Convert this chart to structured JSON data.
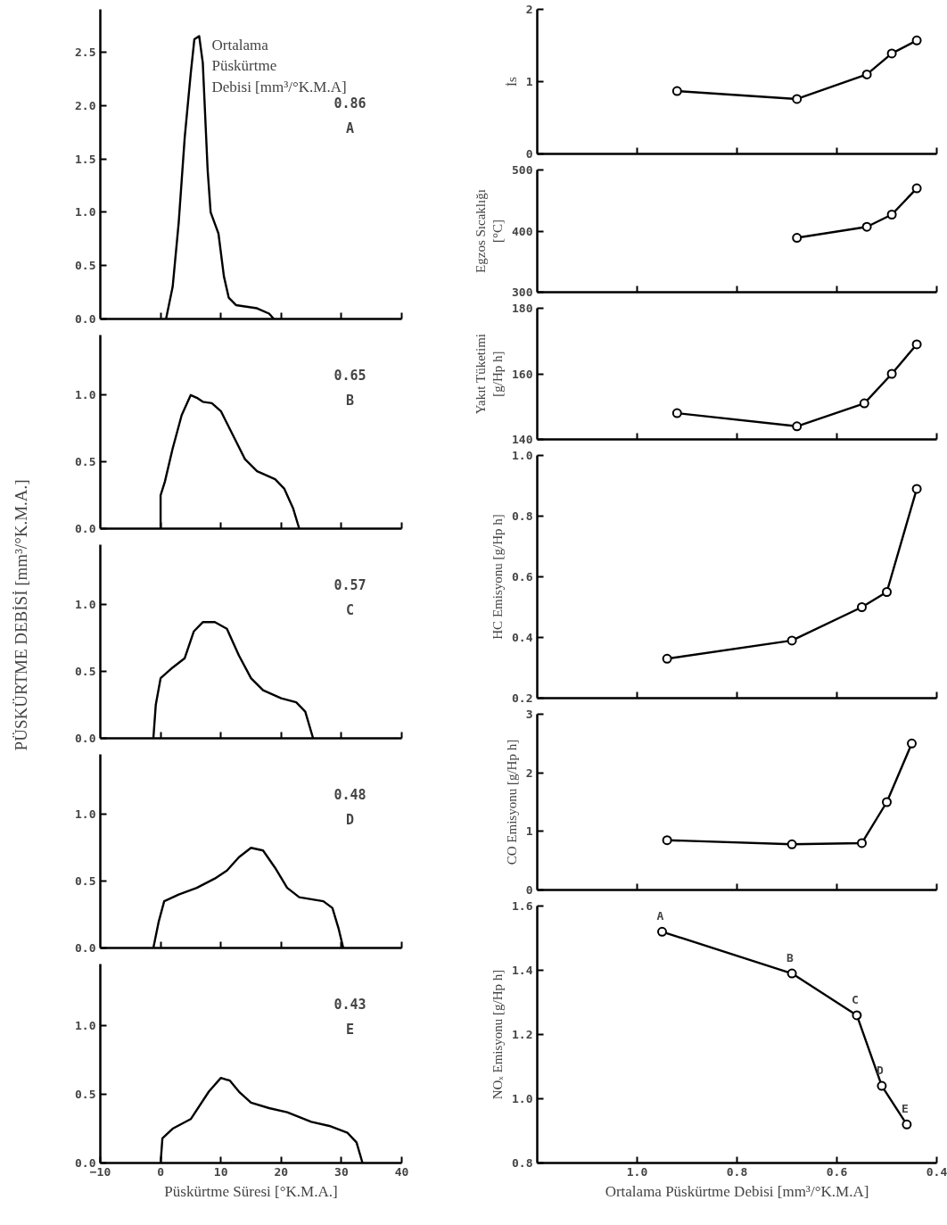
{
  "chart_data": [
    {
      "type": "line",
      "legend_title": "Ortalama\nPüskürtme\nDebisi [mm³/°K.M.A]",
      "annotations": [
        "0.86",
        "A"
      ],
      "xlim": [
        -10,
        40
      ],
      "xticks": [
        {
          "value": 0,
          "label": null
        },
        {
          "value": 10,
          "label": null
        },
        {
          "value": 20,
          "label": null
        },
        {
          "value": 30,
          "label": null
        },
        {
          "value": 40,
          "label": null
        }
      ],
      "ylim": [
        0,
        2.9
      ],
      "yticks": [
        {
          "value": 0,
          "label": "0.0"
        },
        0.5,
        {
          "value": 1,
          "label": "1.0"
        },
        1.5,
        {
          "value": 2,
          "label": "2.0"
        },
        2.5
      ],
      "tick_labels": "y",
      "x": [
        0.9,
        2,
        3,
        4,
        5,
        5.6,
        6.4,
        7,
        7.8,
        8.3,
        9.6,
        10.5,
        11.3,
        12.5,
        16,
        18,
        18.8
      ],
      "series": [
        {
          "color": "#000000",
          "values": [
            0,
            0.3,
            0.9,
            1.7,
            2.3,
            2.62,
            2.65,
            2.4,
            1.4,
            1.0,
            0.8,
            0.4,
            0.2,
            0.13,
            0.1,
            0.05,
            0
          ]
        }
      ]
    },
    {
      "type": "line",
      "annotations": [
        "0.65",
        "B"
      ],
      "xlim": [
        -10,
        40
      ],
      "xticks": [
        {
          "value": 0,
          "label": null
        },
        {
          "value": 10,
          "label": null
        },
        {
          "value": 20,
          "label": null
        },
        {
          "value": 30,
          "label": null
        },
        {
          "value": 40,
          "label": null
        }
      ],
      "ylim": [
        0,
        1.45
      ],
      "yticks": [
        {
          "value": 0,
          "label": "0.0"
        },
        0.5,
        {
          "value": 1,
          "label": "1.0"
        }
      ],
      "tick_labels": "y",
      "x": [
        0,
        0,
        0.7,
        2,
        3.5,
        5,
        6,
        7,
        8.5,
        10,
        12,
        14,
        16,
        19,
        20.5,
        22,
        23
      ],
      "series": [
        {
          "color": "#000000",
          "values": [
            0,
            0.25,
            0.35,
            0.6,
            0.85,
            1.0,
            0.98,
            0.95,
            0.94,
            0.88,
            0.7,
            0.52,
            0.43,
            0.37,
            0.3,
            0.15,
            0
          ]
        }
      ]
    },
    {
      "type": "line",
      "ylabel": "PÜSKÜRTME DEBİSİ  [mm³/°K.M.A.]",
      "annotations": [
        "0.57",
        "C"
      ],
      "xlim": [
        -10,
        40
      ],
      "xticks": [
        {
          "value": 0,
          "label": null
        },
        {
          "value": 10,
          "label": null
        },
        {
          "value": 20,
          "label": null
        },
        {
          "value": 30,
          "label": null
        },
        {
          "value": 40,
          "label": null
        }
      ],
      "ylim": [
        0,
        1.45
      ],
      "yticks": [
        {
          "value": 0,
          "label": "0.0"
        },
        0.5,
        {
          "value": 1,
          "label": "1.0"
        }
      ],
      "tick_labels": "y",
      "x": [
        -1.2,
        -0.8,
        0,
        2,
        4,
        5.5,
        7,
        9,
        11,
        13,
        15,
        17,
        20,
        22.5,
        24,
        25.3
      ],
      "series": [
        {
          "color": "#000000",
          "values": [
            0,
            0.25,
            0.45,
            0.53,
            0.6,
            0.8,
            0.87,
            0.87,
            0.82,
            0.62,
            0.45,
            0.36,
            0.3,
            0.27,
            0.2,
            0
          ]
        }
      ]
    },
    {
      "type": "line",
      "annotations": [
        "0.48",
        "D"
      ],
      "xlim": [
        -10,
        40
      ],
      "xticks": [
        {
          "value": 0,
          "label": null
        },
        {
          "value": 10,
          "label": null
        },
        {
          "value": 20,
          "label": null
        },
        {
          "value": 30,
          "label": null
        },
        {
          "value": 40,
          "label": null
        }
      ],
      "ylim": [
        0,
        1.45
      ],
      "yticks": [
        {
          "value": 0,
          "label": "0.0"
        },
        0.5,
        {
          "value": 1,
          "label": "1.0"
        }
      ],
      "tick_labels": "y",
      "x": [
        -1.2,
        -0.3,
        0.6,
        3,
        6,
        9,
        11,
        13,
        15,
        17,
        19,
        21,
        23,
        27,
        28.5,
        29.5,
        30.3
      ],
      "series": [
        {
          "color": "#000000",
          "values": [
            0,
            0.2,
            0.35,
            0.4,
            0.45,
            0.52,
            0.58,
            0.68,
            0.75,
            0.73,
            0.6,
            0.45,
            0.38,
            0.35,
            0.3,
            0.15,
            0
          ]
        }
      ]
    },
    {
      "type": "line",
      "xlabel": "Püskürtme Süresi [°K.M.A.]",
      "annotations": [
        "0.43",
        "E"
      ],
      "xlim": [
        -10,
        40
      ],
      "xticks": [
        -10,
        0,
        10,
        20,
        30,
        40
      ],
      "ylim": [
        0,
        1.45
      ],
      "yticks": [
        {
          "value": 0,
          "label": "0.0"
        },
        0.5,
        {
          "value": 1,
          "label": "1.0"
        }
      ],
      "x": [
        0,
        0.3,
        2,
        5,
        8,
        10,
        11.5,
        13,
        15,
        18,
        21,
        25,
        28,
        31,
        32.5,
        33.5
      ],
      "series": [
        {
          "color": "#000000",
          "values": [
            0,
            0.18,
            0.25,
            0.32,
            0.52,
            0.62,
            0.6,
            0.52,
            0.44,
            0.4,
            0.37,
            0.3,
            0.27,
            0.22,
            0.15,
            0
          ]
        }
      ]
    },
    {
      "type": "line",
      "marker": "circle",
      "ylabel": "İs",
      "xlim": [
        1.2,
        0.4
      ],
      "xticks": [
        {
          "value": 1,
          "label": null
        },
        {
          "value": 0.8,
          "label": null
        },
        {
          "value": 0.6,
          "label": null
        },
        {
          "value": 0.4,
          "label": null
        }
      ],
      "ylim": [
        0,
        2
      ],
      "yticks": [
        0,
        1,
        2
      ],
      "tick_labels": "y",
      "x": [
        0.92,
        0.68,
        0.54,
        0.49,
        0.44
      ],
      "series": [
        {
          "color": "#000000",
          "values": [
            0.87,
            0.76,
            1.1,
            1.39,
            1.57
          ]
        }
      ]
    },
    {
      "type": "line",
      "marker": "circle",
      "ylabel": "Egzos Sıcaklığı\n[°C]",
      "xlim": [
        1.2,
        0.4
      ],
      "xticks": [
        {
          "value": 1,
          "label": null
        },
        {
          "value": 0.8,
          "label": null
        },
        {
          "value": 0.6,
          "label": null
        },
        {
          "value": 0.4,
          "label": null
        }
      ],
      "ylim": [
        300,
        500
      ],
      "yticks": [
        300,
        400,
        500
      ],
      "tick_labels": "y",
      "x": [
        0.68,
        0.54,
        0.49,
        0.44
      ],
      "series": [
        {
          "color": "#000000",
          "values": [
            389,
            407,
            427,
            470
          ]
        }
      ]
    },
    {
      "type": "line",
      "marker": "circle",
      "ylabel": "Yakıt Tüketimi\n[g/Hp h]",
      "xlim": [
        1.2,
        0.4
      ],
      "xticks": [
        {
          "value": 1,
          "label": null
        },
        {
          "value": 0.8,
          "label": null
        },
        {
          "value": 0.6,
          "label": null
        },
        {
          "value": 0.4,
          "label": null
        }
      ],
      "ylim": [
        140,
        180
      ],
      "yticks": [
        140,
        160,
        180
      ],
      "tick_labels": "y",
      "x": [
        0.92,
        0.68,
        0.545,
        0.49,
        0.44
      ],
      "series": [
        {
          "color": "#000000",
          "values": [
            148,
            144,
            151,
            160,
            169
          ]
        }
      ]
    },
    {
      "type": "line",
      "marker": "circle",
      "ylabel": "HC Emisyonu [g/Hp h]",
      "xlim": [
        1.2,
        0.4
      ],
      "xticks": [
        {
          "value": 1,
          "label": null
        },
        {
          "value": 0.8,
          "label": null
        },
        {
          "value": 0.6,
          "label": null
        },
        {
          "value": 0.4,
          "label": null
        }
      ],
      "ylim": [
        0.2,
        1.0
      ],
      "yticks": [
        0.2,
        0.4,
        0.6,
        0.8,
        {
          "value": 1,
          "label": "1.0"
        }
      ],
      "tick_labels": "y",
      "x": [
        0.94,
        0.69,
        0.55,
        0.5,
        0.44
      ],
      "series": [
        {
          "color": "#000000",
          "values": [
            0.33,
            0.39,
            0.5,
            0.55,
            0.89
          ]
        }
      ]
    },
    {
      "type": "line",
      "marker": "circle",
      "ylabel": "CO Emisyonu [g/Hp h]",
      "xlim": [
        1.2,
        0.4
      ],
      "xticks": [
        {
          "value": 1,
          "label": null
        },
        {
          "value": 0.8,
          "label": null
        },
        {
          "value": 0.6,
          "label": null
        },
        {
          "value": 0.4,
          "label": null
        }
      ],
      "ylim": [
        0,
        3
      ],
      "yticks": [
        0,
        1,
        2,
        3
      ],
      "tick_labels": "y",
      "x": [
        0.94,
        0.69,
        0.55,
        0.5,
        0.45
      ],
      "series": [
        {
          "color": "#000000",
          "values": [
            0.85,
            0.78,
            0.8,
            1.5,
            2.5
          ]
        }
      ]
    },
    {
      "type": "line",
      "marker": "circle",
      "ylabel": "NOₓ Emisyonu [g/Hp h]",
      "xlabel": "Ortalama Püskürtme Debisi [mm³/°K.M.A]",
      "xlim": [
        1.2,
        0.4
      ],
      "xticks": [
        {
          "value": 1,
          "label": "1.0"
        },
        0.8,
        0.6,
        0.4
      ],
      "ylim": [
        0.8,
        1.6
      ],
      "yticks": [
        0.8,
        {
          "value": 1,
          "label": "1.0"
        },
        1.2,
        1.4,
        1.6
      ],
      "annotations": [
        {
          "text": "A",
          "x": 0.95,
          "y": 1.52
        },
        {
          "text": "B",
          "x": 0.69,
          "y": 1.39
        },
        {
          "text": "C",
          "x": 0.56,
          "y": 1.26
        },
        {
          "text": "D",
          "x": 0.51,
          "y": 1.04
        },
        {
          "text": "E",
          "x": 0.46,
          "y": 0.92
        }
      ],
      "x": [
        0.95,
        0.69,
        0.56,
        0.51,
        0.46
      ],
      "series": [
        {
          "color": "#000000",
          "values": [
            1.52,
            1.39,
            1.26,
            1.04,
            0.92
          ]
        }
      ]
    }
  ]
}
